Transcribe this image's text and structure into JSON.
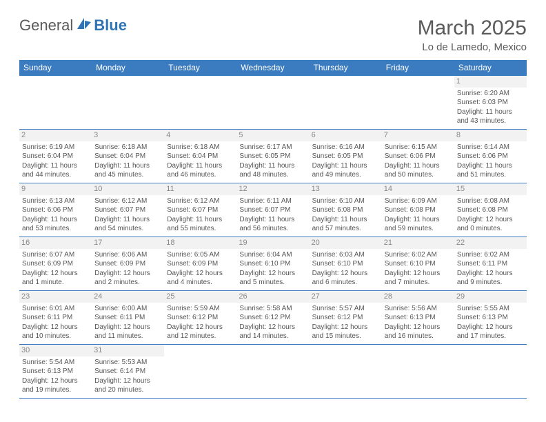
{
  "logo": {
    "part1": "General",
    "part2": "Blue"
  },
  "header": {
    "title": "March 2025",
    "location": "Lo de Lamedo, Mexico"
  },
  "columns": [
    "Sunday",
    "Monday",
    "Tuesday",
    "Wednesday",
    "Thursday",
    "Friday",
    "Saturday"
  ],
  "colors": {
    "header_bg": "#3b7bbf",
    "header_fg": "#ffffff",
    "cell_border": "#3b7bbf",
    "text": "#555555",
    "daynum_bg": "#f2f2f2"
  },
  "weeks": [
    [
      null,
      null,
      null,
      null,
      null,
      null,
      {
        "n": "1",
        "sr": "Sunrise: 6:20 AM",
        "ss": "Sunset: 6:03 PM",
        "dl1": "Daylight: 11 hours",
        "dl2": "and 43 minutes."
      }
    ],
    [
      {
        "n": "2",
        "sr": "Sunrise: 6:19 AM",
        "ss": "Sunset: 6:04 PM",
        "dl1": "Daylight: 11 hours",
        "dl2": "and 44 minutes."
      },
      {
        "n": "3",
        "sr": "Sunrise: 6:18 AM",
        "ss": "Sunset: 6:04 PM",
        "dl1": "Daylight: 11 hours",
        "dl2": "and 45 minutes."
      },
      {
        "n": "4",
        "sr": "Sunrise: 6:18 AM",
        "ss": "Sunset: 6:04 PM",
        "dl1": "Daylight: 11 hours",
        "dl2": "and 46 minutes."
      },
      {
        "n": "5",
        "sr": "Sunrise: 6:17 AM",
        "ss": "Sunset: 6:05 PM",
        "dl1": "Daylight: 11 hours",
        "dl2": "and 48 minutes."
      },
      {
        "n": "6",
        "sr": "Sunrise: 6:16 AM",
        "ss": "Sunset: 6:05 PM",
        "dl1": "Daylight: 11 hours",
        "dl2": "and 49 minutes."
      },
      {
        "n": "7",
        "sr": "Sunrise: 6:15 AM",
        "ss": "Sunset: 6:06 PM",
        "dl1": "Daylight: 11 hours",
        "dl2": "and 50 minutes."
      },
      {
        "n": "8",
        "sr": "Sunrise: 6:14 AM",
        "ss": "Sunset: 6:06 PM",
        "dl1": "Daylight: 11 hours",
        "dl2": "and 51 minutes."
      }
    ],
    [
      {
        "n": "9",
        "sr": "Sunrise: 6:13 AM",
        "ss": "Sunset: 6:06 PM",
        "dl1": "Daylight: 11 hours",
        "dl2": "and 53 minutes."
      },
      {
        "n": "10",
        "sr": "Sunrise: 6:12 AM",
        "ss": "Sunset: 6:07 PM",
        "dl1": "Daylight: 11 hours",
        "dl2": "and 54 minutes."
      },
      {
        "n": "11",
        "sr": "Sunrise: 6:12 AM",
        "ss": "Sunset: 6:07 PM",
        "dl1": "Daylight: 11 hours",
        "dl2": "and 55 minutes."
      },
      {
        "n": "12",
        "sr": "Sunrise: 6:11 AM",
        "ss": "Sunset: 6:07 PM",
        "dl1": "Daylight: 11 hours",
        "dl2": "and 56 minutes."
      },
      {
        "n": "13",
        "sr": "Sunrise: 6:10 AM",
        "ss": "Sunset: 6:08 PM",
        "dl1": "Daylight: 11 hours",
        "dl2": "and 57 minutes."
      },
      {
        "n": "14",
        "sr": "Sunrise: 6:09 AM",
        "ss": "Sunset: 6:08 PM",
        "dl1": "Daylight: 11 hours",
        "dl2": "and 59 minutes."
      },
      {
        "n": "15",
        "sr": "Sunrise: 6:08 AM",
        "ss": "Sunset: 6:08 PM",
        "dl1": "Daylight: 12 hours",
        "dl2": "and 0 minutes."
      }
    ],
    [
      {
        "n": "16",
        "sr": "Sunrise: 6:07 AM",
        "ss": "Sunset: 6:09 PM",
        "dl1": "Daylight: 12 hours",
        "dl2": "and 1 minute."
      },
      {
        "n": "17",
        "sr": "Sunrise: 6:06 AM",
        "ss": "Sunset: 6:09 PM",
        "dl1": "Daylight: 12 hours",
        "dl2": "and 2 minutes."
      },
      {
        "n": "18",
        "sr": "Sunrise: 6:05 AM",
        "ss": "Sunset: 6:09 PM",
        "dl1": "Daylight: 12 hours",
        "dl2": "and 4 minutes."
      },
      {
        "n": "19",
        "sr": "Sunrise: 6:04 AM",
        "ss": "Sunset: 6:10 PM",
        "dl1": "Daylight: 12 hours",
        "dl2": "and 5 minutes."
      },
      {
        "n": "20",
        "sr": "Sunrise: 6:03 AM",
        "ss": "Sunset: 6:10 PM",
        "dl1": "Daylight: 12 hours",
        "dl2": "and 6 minutes."
      },
      {
        "n": "21",
        "sr": "Sunrise: 6:02 AM",
        "ss": "Sunset: 6:10 PM",
        "dl1": "Daylight: 12 hours",
        "dl2": "and 7 minutes."
      },
      {
        "n": "22",
        "sr": "Sunrise: 6:02 AM",
        "ss": "Sunset: 6:11 PM",
        "dl1": "Daylight: 12 hours",
        "dl2": "and 9 minutes."
      }
    ],
    [
      {
        "n": "23",
        "sr": "Sunrise: 6:01 AM",
        "ss": "Sunset: 6:11 PM",
        "dl1": "Daylight: 12 hours",
        "dl2": "and 10 minutes."
      },
      {
        "n": "24",
        "sr": "Sunrise: 6:00 AM",
        "ss": "Sunset: 6:11 PM",
        "dl1": "Daylight: 12 hours",
        "dl2": "and 11 minutes."
      },
      {
        "n": "25",
        "sr": "Sunrise: 5:59 AM",
        "ss": "Sunset: 6:12 PM",
        "dl1": "Daylight: 12 hours",
        "dl2": "and 12 minutes."
      },
      {
        "n": "26",
        "sr": "Sunrise: 5:58 AM",
        "ss": "Sunset: 6:12 PM",
        "dl1": "Daylight: 12 hours",
        "dl2": "and 14 minutes."
      },
      {
        "n": "27",
        "sr": "Sunrise: 5:57 AM",
        "ss": "Sunset: 6:12 PM",
        "dl1": "Daylight: 12 hours",
        "dl2": "and 15 minutes."
      },
      {
        "n": "28",
        "sr": "Sunrise: 5:56 AM",
        "ss": "Sunset: 6:13 PM",
        "dl1": "Daylight: 12 hours",
        "dl2": "and 16 minutes."
      },
      {
        "n": "29",
        "sr": "Sunrise: 5:55 AM",
        "ss": "Sunset: 6:13 PM",
        "dl1": "Daylight: 12 hours",
        "dl2": "and 17 minutes."
      }
    ],
    [
      {
        "n": "30",
        "sr": "Sunrise: 5:54 AM",
        "ss": "Sunset: 6:13 PM",
        "dl1": "Daylight: 12 hours",
        "dl2": "and 19 minutes."
      },
      {
        "n": "31",
        "sr": "Sunrise: 5:53 AM",
        "ss": "Sunset: 6:14 PM",
        "dl1": "Daylight: 12 hours",
        "dl2": "and 20 minutes."
      },
      null,
      null,
      null,
      null,
      null
    ]
  ]
}
